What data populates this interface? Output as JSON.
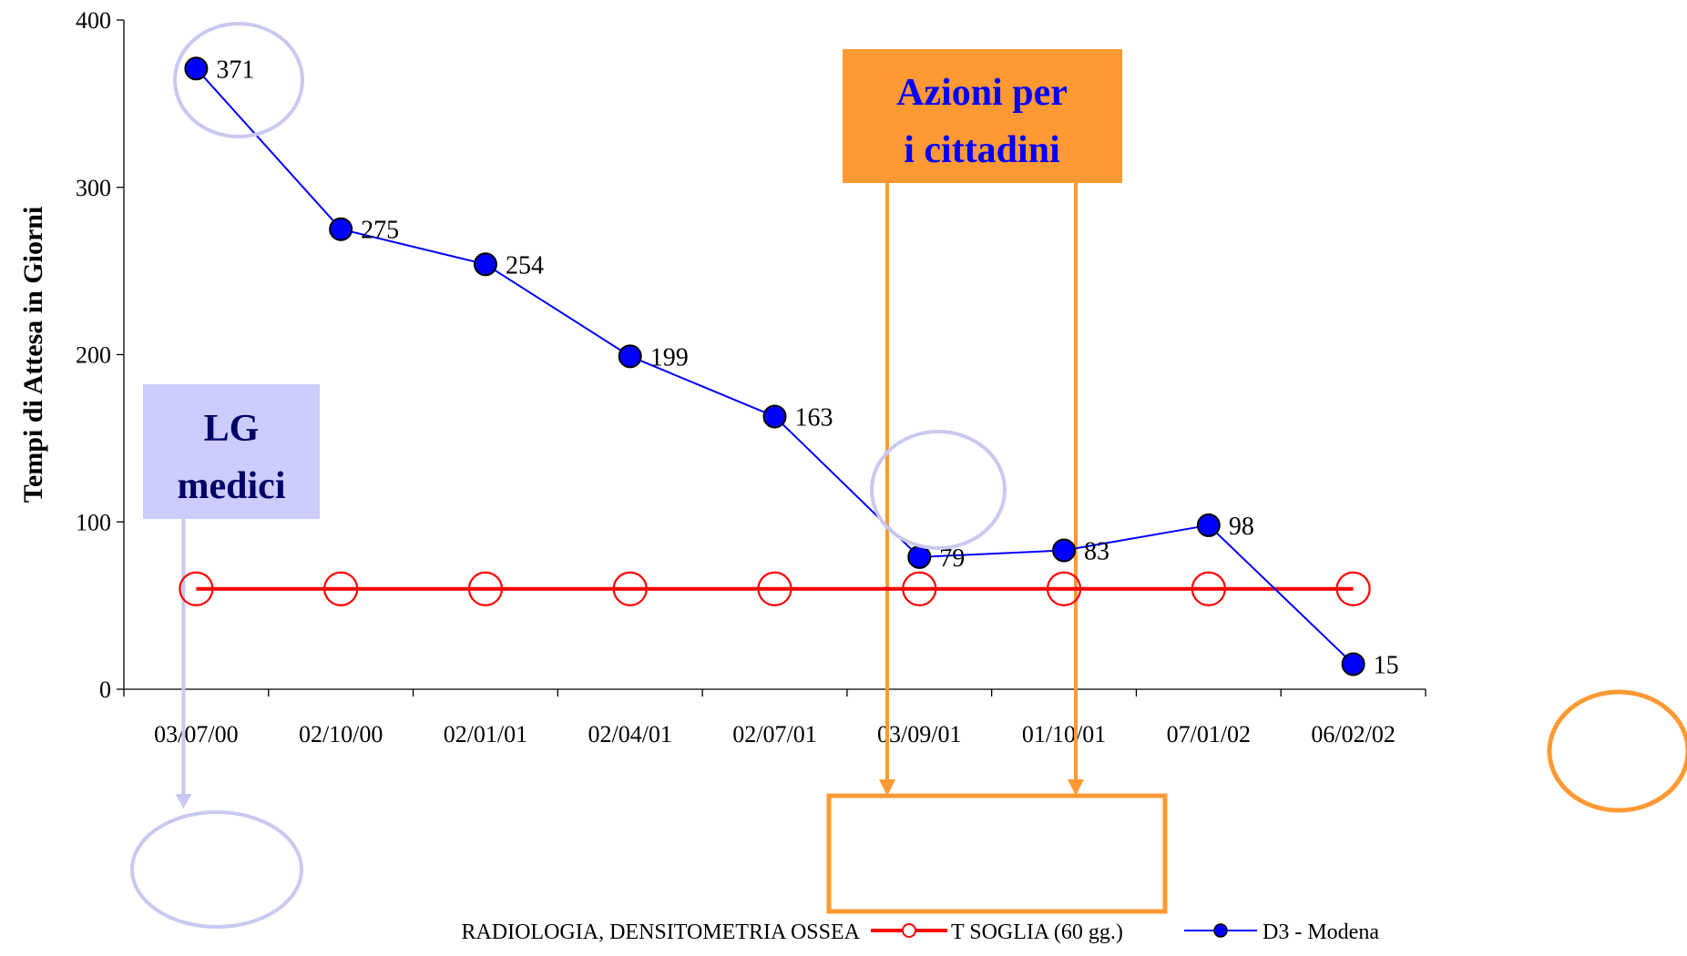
{
  "chart_data": {
    "type": "line",
    "title": "",
    "xlabel": "",
    "ylabel": "Tempi di Attesa in Giorni",
    "ylim": [
      0,
      400
    ],
    "y_ticks": [
      0,
      100,
      200,
      300,
      400
    ],
    "categories": [
      "03/07/00",
      "02/10/00",
      "02/01/01",
      "02/04/01",
      "02/07/01",
      "03/09/01",
      "01/10/01",
      "07/01/02",
      "06/02/02"
    ],
    "series": [
      {
        "name": "T SOGLIA (60 gg.)",
        "values": [
          60,
          60,
          60,
          60,
          60,
          60,
          60,
          60,
          60
        ],
        "color": "#ff0000",
        "marker": "open-circle"
      },
      {
        "name": "D3 - Modena",
        "values": [
          371,
          275,
          254,
          199,
          163,
          79,
          83,
          98,
          15
        ],
        "color": "#0000ff",
        "marker": "filled-circle",
        "data_labels": [
          "371",
          "275",
          "254",
          "199",
          "163",
          "79",
          "83",
          "98",
          "15"
        ]
      }
    ],
    "legend": {
      "placement": "bottom",
      "prefix": "RADIOLOGIA, DENSITOMETRIA OSSEA",
      "entries": [
        "T SOGLIA (60 gg.)",
        "D3 - Modena"
      ]
    },
    "annotations": {
      "lg_box": {
        "line1": "LG",
        "line2": "medici",
        "fill": "#ccccff",
        "text_color": "#000066"
      },
      "azioni_box": {
        "line1": "Azioni per",
        "line2": "i cittadini",
        "fill": "#ff9933",
        "text_color": "#0000ff"
      }
    },
    "colors": {
      "axis": "#000000",
      "threshold": "#ff0000",
      "series": "#0000ff",
      "marker_fill": "#0000ff",
      "highlight_lavender": "#c8c8f0",
      "highlight_orange": "#ff9933"
    }
  }
}
